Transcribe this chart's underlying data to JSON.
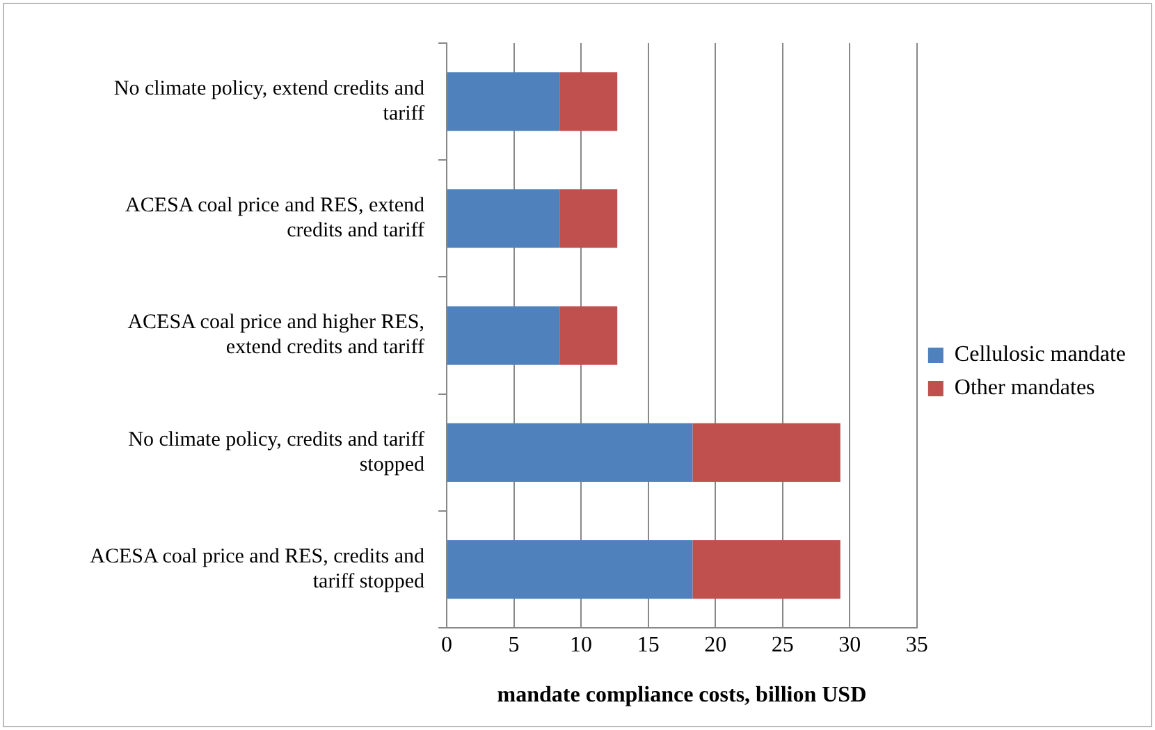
{
  "chart_data": {
    "type": "bar",
    "orientation": "horizontal",
    "stacked": true,
    "categories": [
      "No climate policy, extend credits and tariff",
      "ACESA coal price and RES, extend credits and tariff",
      "ACESA coal price and higher RES, extend credits and tariff",
      "No climate policy, credits and tariff stopped",
      "ACESA coal price and RES, credits and tariff stopped"
    ],
    "series": [
      {
        "name": "Cellulosic mandate",
        "color": "#4f81bd",
        "values": [
          8.4,
          8.4,
          8.4,
          18.3,
          18.3
        ]
      },
      {
        "name": "Other mandates",
        "color": "#c0504d",
        "values": [
          4.3,
          4.3,
          4.3,
          11.0,
          11.0
        ]
      }
    ],
    "xlabel": "mandate compliance costs, billion USD",
    "xlim": [
      0,
      35
    ],
    "xticks": [
      0,
      5,
      10,
      15,
      20,
      25,
      30,
      35
    ],
    "grid": "x",
    "legend": "right"
  }
}
